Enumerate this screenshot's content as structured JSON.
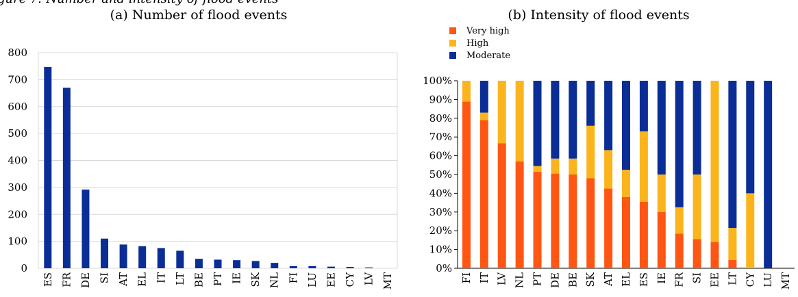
{
  "heading": "gure 7: Number and intensity of flood events",
  "chart_data": [
    {
      "type": "bar",
      "title": "(a) Number of flood events",
      "xlabel": "",
      "ylabel": "",
      "categories": [
        "ES",
        "FR",
        "DE",
        "SI",
        "AT",
        "EL",
        "IT",
        "LT",
        "BE",
        "PT",
        "IE",
        "SK",
        "NL",
        "FI",
        "LU",
        "EE",
        "CY",
        "LV",
        "MT"
      ],
      "values": [
        747,
        670,
        292,
        110,
        88,
        82,
        75,
        65,
        35,
        32,
        30,
        27,
        20,
        8,
        8,
        6,
        5,
        3,
        0
      ],
      "ylim": [
        0,
        800
      ],
      "yticks": [
        0,
        100,
        200,
        300,
        400,
        500,
        600,
        700,
        800
      ],
      "grid": true,
      "bar_color": "#0b2d96"
    },
    {
      "type": "bar",
      "stacked": true,
      "title": "(b) Intensity of flood events",
      "xlabel": "",
      "ylabel": "",
      "categories": [
        "FI",
        "IT",
        "LV",
        "NL",
        "PT",
        "DE",
        "BE",
        "SK",
        "AT",
        "EL",
        "ES",
        "IE",
        "FR",
        "SI",
        "EE",
        "LT",
        "CY",
        "LU",
        "MT"
      ],
      "series": [
        {
          "name": "Very high",
          "color": "#ff5614",
          "values": [
            88.9,
            79,
            66.7,
            57,
            51.5,
            50.5,
            50,
            48,
            42.5,
            38,
            35.5,
            30,
            18.5,
            15.5,
            14,
            4.5,
            0,
            0,
            0
          ]
        },
        {
          "name": "High",
          "color": "#fcb41c",
          "values": [
            11.1,
            4,
            33.3,
            43,
            3,
            8,
            8.5,
            28,
            20.5,
            14.5,
            37.5,
            20,
            14,
            34.5,
            86,
            17,
            40,
            0,
            0
          ]
        },
        {
          "name": "Moderate",
          "color": "#0b2d96",
          "values": [
            0,
            17,
            0,
            0,
            45.5,
            41.5,
            41.5,
            24,
            37,
            47.5,
            27,
            50,
            67.5,
            50,
            0,
            78.5,
            60,
            100,
            0
          ]
        }
      ],
      "ylim": [
        0,
        100
      ],
      "yticks": [
        "0%",
        "10%",
        "20%",
        "30%",
        "40%",
        "50%",
        "60%",
        "70%",
        "80%",
        "90%",
        "100%"
      ],
      "legend": "top-left"
    }
  ]
}
